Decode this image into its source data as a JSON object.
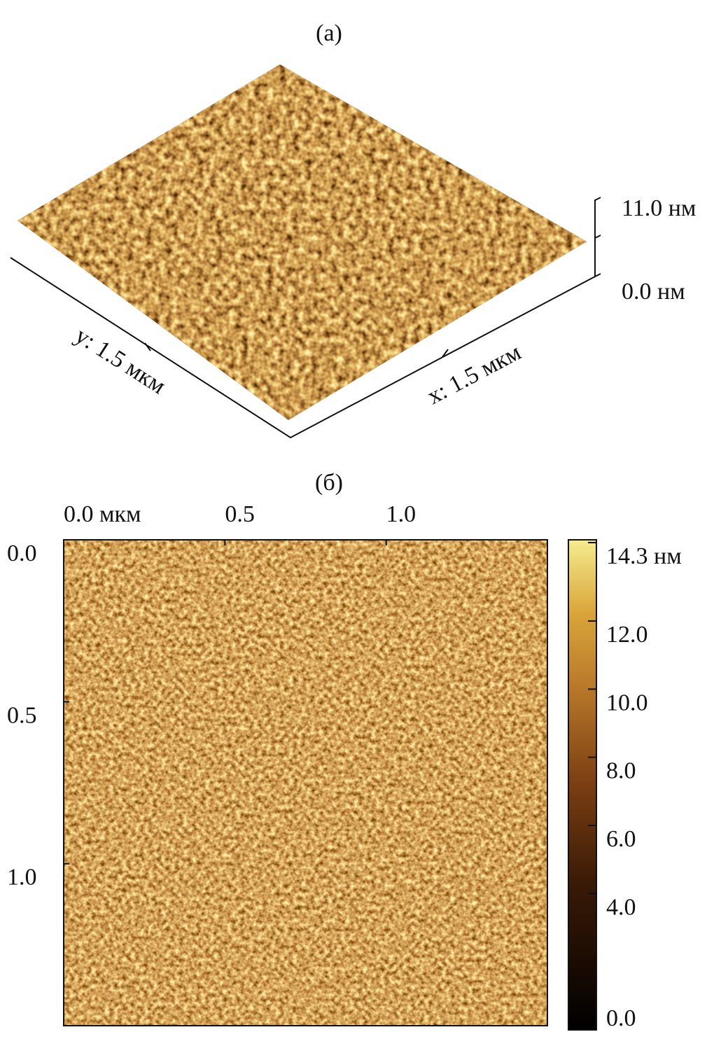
{
  "panel_a": {
    "label": "(a)",
    "z_top": "11.0 нм",
    "z_bottom": "0.0 нм",
    "y_axis": "y: 1.5 мкм",
    "x_axis": "x: 1.5 мкм"
  },
  "panel_b": {
    "label": "(б)",
    "top_ticks": [
      {
        "value": 0,
        "label": "0.0 мкм"
      },
      0.5,
      {
        "value": 1,
        "label": "1.0"
      }
    ],
    "left_ticks": [
      {
        "value": 0,
        "label": "0.0"
      },
      0.5,
      {
        "value": 1,
        "label": "1.0"
      }
    ],
    "extent": 1.5,
    "colorbar": {
      "lim": [
        0,
        14.3
      ],
      "ticks": [
        {
          "value": 14.3,
          "label": "14.3 нм"
        },
        {
          "value": 12,
          "label": "12.0"
        },
        {
          "value": 10,
          "label": "10.0"
        },
        {
          "value": 8,
          "label": "8.0"
        },
        {
          "value": 6,
          "label": "6.0"
        },
        {
          "value": 4,
          "label": "4.0"
        },
        {
          "value": 0,
          "label": "0.0"
        }
      ]
    }
  }
}
